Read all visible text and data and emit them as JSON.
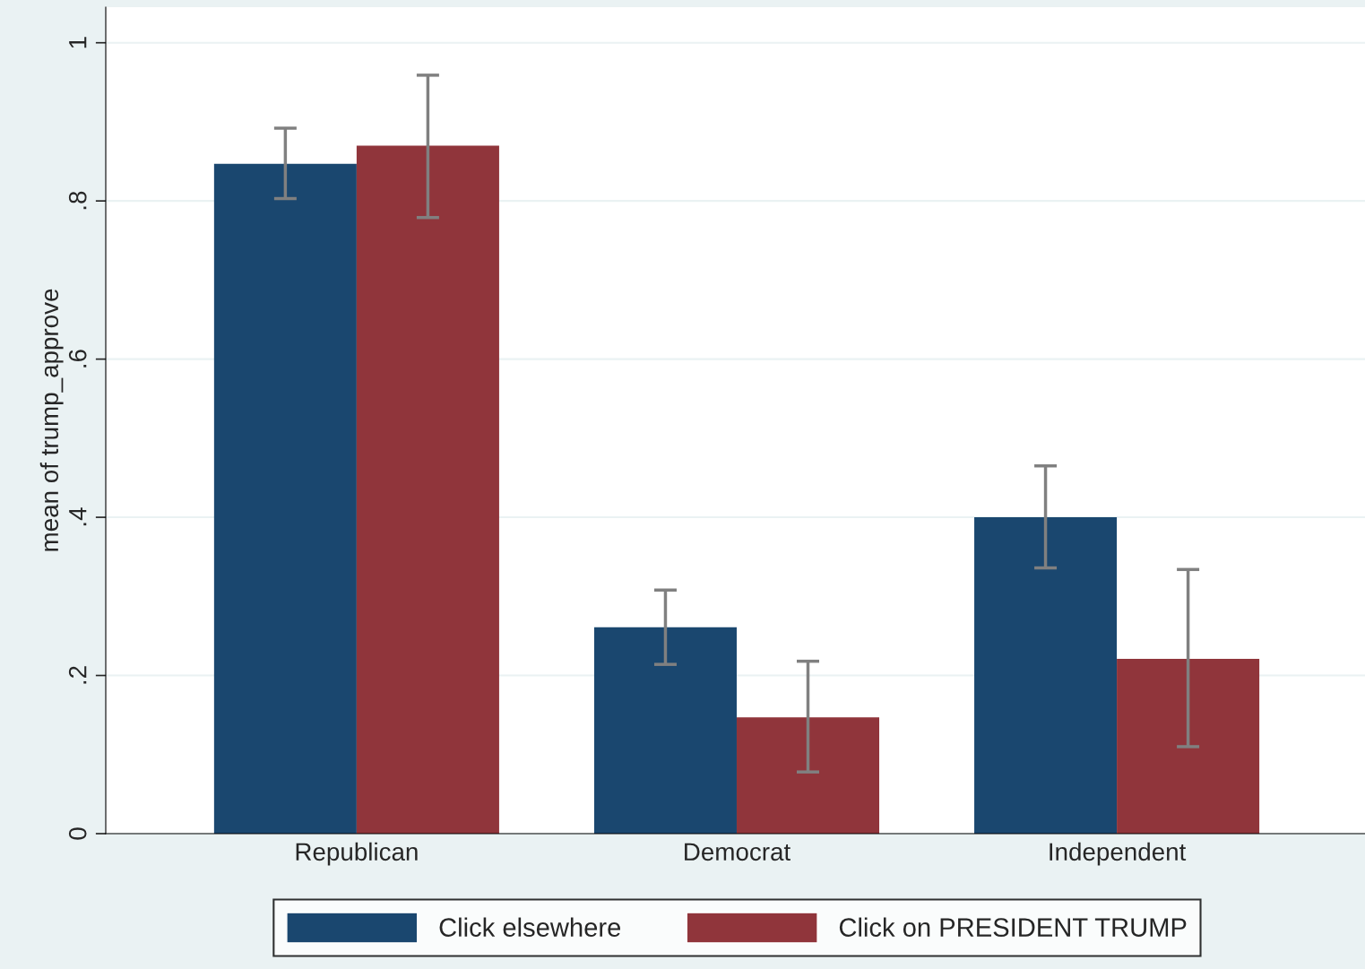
{
  "chart_data": {
    "type": "bar",
    "ylabel": "mean of trump_approve",
    "categories": [
      "Republican",
      "Democrat",
      "Independent"
    ],
    "series": [
      {
        "name": "Click elsewhere",
        "color": "#1a476f",
        "values": [
          0.847,
          0.261,
          0.4
        ],
        "errors": [
          [
            0.803,
            0.892
          ],
          [
            0.214,
            0.308
          ],
          [
            0.336,
            0.465
          ]
        ]
      },
      {
        "name": "Click on PRESIDENT TRUMP",
        "color": "#90353b",
        "values": [
          0.87,
          0.147,
          0.221
        ],
        "errors": [
          [
            0.779,
            0.959
          ],
          [
            0.078,
            0.218
          ],
          [
            0.11,
            0.334
          ]
        ]
      }
    ],
    "ylim": [
      0,
      1.045
    ],
    "yticks": [
      0,
      {
        "value": 0.2,
        "label": ".2"
      },
      {
        "value": 0.4,
        "label": ".4"
      },
      {
        "value": 0.6,
        "label": ".6"
      },
      {
        "value": 0.8,
        "label": ".8"
      },
      1
    ],
    "grid": "y",
    "legend": "bottom"
  }
}
